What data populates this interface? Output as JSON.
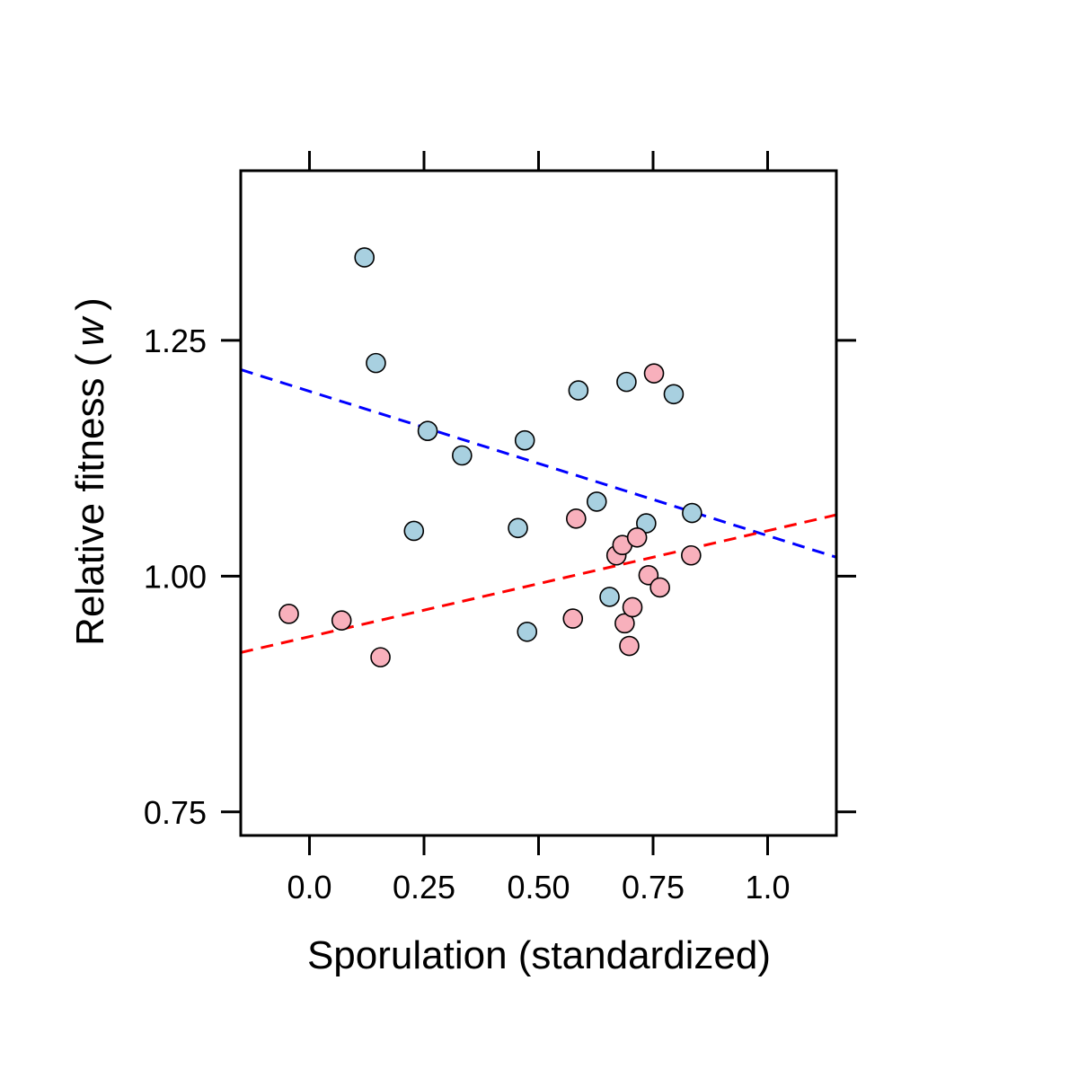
{
  "chart_data": {
    "type": "scatter",
    "xlabel": "Sporulation (standardized)",
    "ylabel": {
      "prefix": "Relative fitness (",
      "symbol": "w",
      "suffix": ")"
    },
    "xlim": [
      -0.15,
      1.15
    ],
    "ylim": [
      0.725,
      1.43
    ],
    "x_ticks": [
      0.0,
      0.25,
      0.5,
      0.75,
      1.0
    ],
    "x_tick_labels": [
      "0.0",
      "0.25",
      "0.50",
      "0.75",
      "1.0"
    ],
    "y_ticks": [
      0.75,
      1.0,
      1.25
    ],
    "y_tick_labels": [
      "0.75",
      "1.00",
      "1.25"
    ],
    "grid": false,
    "series": [
      {
        "color": "#a8d0e0",
        "line_color": "#0000ff",
        "points": [
          [
            0.12,
            1.338
          ],
          [
            0.145,
            1.226
          ],
          [
            0.228,
            1.048
          ],
          [
            0.258,
            1.154
          ],
          [
            0.333,
            1.128
          ],
          [
            0.455,
            1.051
          ],
          [
            0.47,
            1.144
          ],
          [
            0.475,
            0.941
          ],
          [
            0.587,
            1.197
          ],
          [
            0.627,
            1.079
          ],
          [
            0.655,
            0.978
          ],
          [
            0.692,
            1.206
          ],
          [
            0.735,
            1.056
          ],
          [
            0.795,
            1.193
          ],
          [
            0.835,
            1.067
          ]
        ],
        "fit": [
          [
            -0.15,
            1.219
          ],
          [
            1.15,
            1.02
          ]
        ]
      },
      {
        "color": "#f8b0bc",
        "line_color": "#ff0000",
        "points": [
          [
            -0.045,
            0.96
          ],
          [
            0.07,
            0.953
          ],
          [
            0.155,
            0.914
          ],
          [
            0.575,
            0.955
          ],
          [
            0.582,
            1.061
          ],
          [
            0.67,
            1.022
          ],
          [
            0.683,
            1.033
          ],
          [
            0.688,
            0.95
          ],
          [
            0.698,
            0.926
          ],
          [
            0.705,
            0.967
          ],
          [
            0.715,
            1.041
          ],
          [
            0.74,
            1.001
          ],
          [
            0.752,
            1.215
          ],
          [
            0.765,
            0.988
          ],
          [
            0.833,
            1.022
          ]
        ],
        "fit": [
          [
            -0.15,
            0.919
          ],
          [
            1.15,
            1.065
          ]
        ]
      }
    ]
  }
}
